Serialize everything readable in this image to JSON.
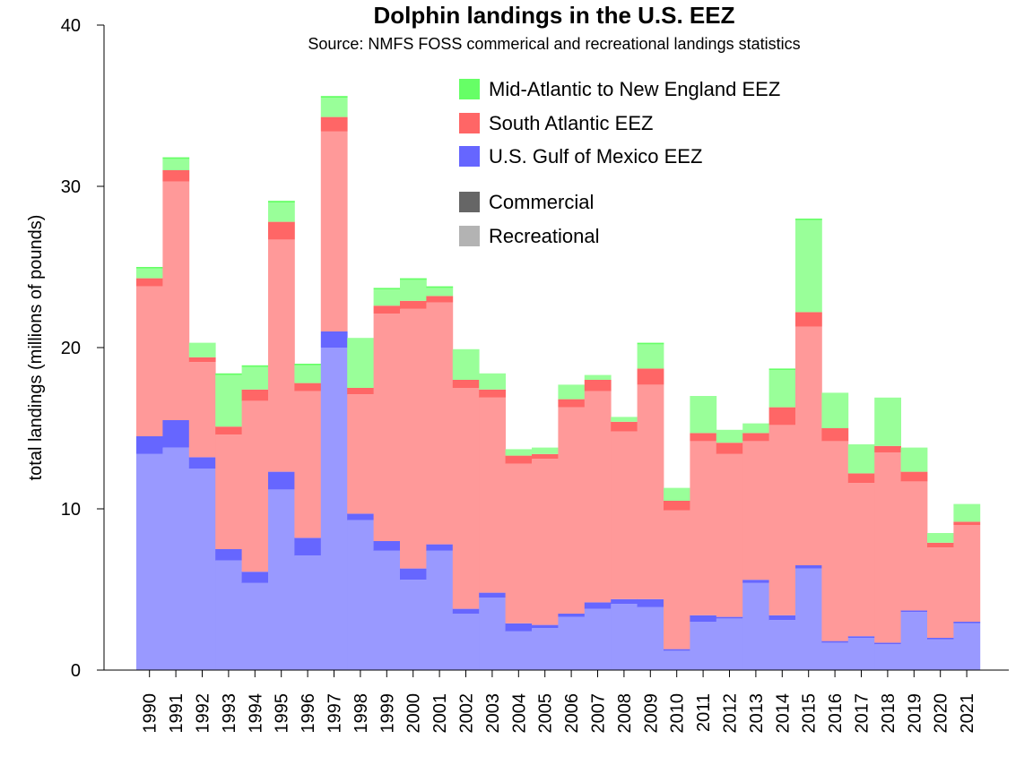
{
  "chart_data": {
    "type": "bar",
    "stacked": true,
    "title": "Dolphin landings in the U.S. EEZ",
    "subtitle": "Source: NMFS FOSS commerical and recreational landings statistics",
    "xlabel": "",
    "ylabel": "total landings (millions of pounds)",
    "ylim": [
      0,
      40
    ],
    "yticks": [
      "0",
      "10",
      "20",
      "30",
      "40"
    ],
    "grid": false,
    "legend_position": "top-right",
    "categories": [
      "1990",
      "1991",
      "1992",
      "1993",
      "1994",
      "1995",
      "1996",
      "1997",
      "1998",
      "1999",
      "2000",
      "2001",
      "2002",
      "2003",
      "2004",
      "2005",
      "2006",
      "2007",
      "2008",
      "2009",
      "2010",
      "2011",
      "2012",
      "2013",
      "2014",
      "2015",
      "2016",
      "2017",
      "2018",
      "2019",
      "2020",
      "2021"
    ],
    "series": [
      {
        "region": "U.S. Gulf of Mexico EEZ",
        "type": "Recreational",
        "color": "#9999ff",
        "values": [
          13.4,
          13.8,
          12.5,
          6.8,
          5.4,
          11.2,
          7.1,
          20.0,
          9.3,
          7.4,
          5.6,
          7.4,
          3.5,
          4.5,
          2.4,
          2.6,
          3.3,
          3.8,
          4.1,
          3.9,
          1.2,
          3.0,
          3.2,
          5.4,
          3.1,
          6.3,
          1.7,
          2.0,
          1.6,
          3.6,
          1.9,
          2.9
        ]
      },
      {
        "region": "U.S. Gulf of Mexico EEZ",
        "type": "Commercial",
        "color": "#6666ff",
        "values": [
          1.1,
          1.7,
          0.7,
          0.7,
          0.7,
          1.1,
          1.1,
          1.0,
          0.4,
          0.6,
          0.7,
          0.4,
          0.3,
          0.3,
          0.5,
          0.2,
          0.2,
          0.4,
          0.3,
          0.5,
          0.1,
          0.4,
          0.1,
          0.2,
          0.3,
          0.2,
          0.1,
          0.1,
          0.1,
          0.1,
          0.1,
          0.1
        ]
      },
      {
        "region": "South Atlantic EEZ",
        "type": "Recreational",
        "color": "#ff9999",
        "values": [
          9.3,
          14.8,
          5.9,
          7.1,
          10.6,
          14.4,
          9.1,
          12.4,
          7.4,
          14.1,
          16.1,
          15.0,
          13.7,
          12.1,
          9.9,
          10.3,
          12.8,
          13.1,
          10.4,
          13.3,
          8.6,
          10.8,
          10.1,
          8.6,
          11.8,
          14.8,
          12.4,
          9.5,
          11.8,
          8.0,
          5.6,
          6.0
        ]
      },
      {
        "region": "South Atlantic EEZ",
        "type": "Commercial",
        "color": "#ff6666",
        "values": [
          0.5,
          0.7,
          0.3,
          0.5,
          0.7,
          1.1,
          0.5,
          0.9,
          0.4,
          0.5,
          0.5,
          0.4,
          0.5,
          0.5,
          0.5,
          0.3,
          0.5,
          0.7,
          0.6,
          1.0,
          0.6,
          0.5,
          0.7,
          0.5,
          1.1,
          0.9,
          0.8,
          0.6,
          0.4,
          0.6,
          0.3,
          0.2
        ]
      },
      {
        "region": "Mid-Atlantic to New England EEZ",
        "type": "Recreational",
        "color": "#99ff99",
        "values": [
          0.6,
          0.7,
          0.9,
          3.2,
          1.4,
          1.2,
          1.1,
          1.2,
          3.1,
          1.0,
          1.3,
          0.5,
          1.9,
          1.0,
          0.4,
          0.4,
          0.9,
          0.3,
          0.3,
          1.5,
          0.8,
          2.3,
          0.8,
          0.6,
          2.3,
          5.7,
          2.2,
          1.8,
          3.0,
          1.5,
          0.6,
          1.1
        ]
      },
      {
        "region": "Mid-Atlantic to New England EEZ",
        "type": "Commercial",
        "color": "#66ff66",
        "values": [
          0.1,
          0.1,
          0.0,
          0.1,
          0.1,
          0.1,
          0.1,
          0.1,
          0.0,
          0.1,
          0.1,
          0.1,
          0.0,
          0.0,
          0.0,
          0.0,
          0.0,
          0.0,
          0.0,
          0.1,
          0.0,
          0.0,
          0.0,
          0.0,
          0.1,
          0.1,
          0.0,
          0.0,
          0.0,
          0.0,
          0.0,
          0.0
        ]
      }
    ],
    "legend": [
      {
        "label": "Mid-Atlantic to New England EEZ",
        "color": "#66ff66"
      },
      {
        "label": "South Atlantic EEZ",
        "color": "#ff6666"
      },
      {
        "label": "U.S. Gulf of Mexico EEZ",
        "color": "#6666ff"
      },
      {
        "label": "Commercial",
        "color": "#666666"
      },
      {
        "label": "Recreational",
        "color": "#b3b3b3"
      }
    ]
  }
}
